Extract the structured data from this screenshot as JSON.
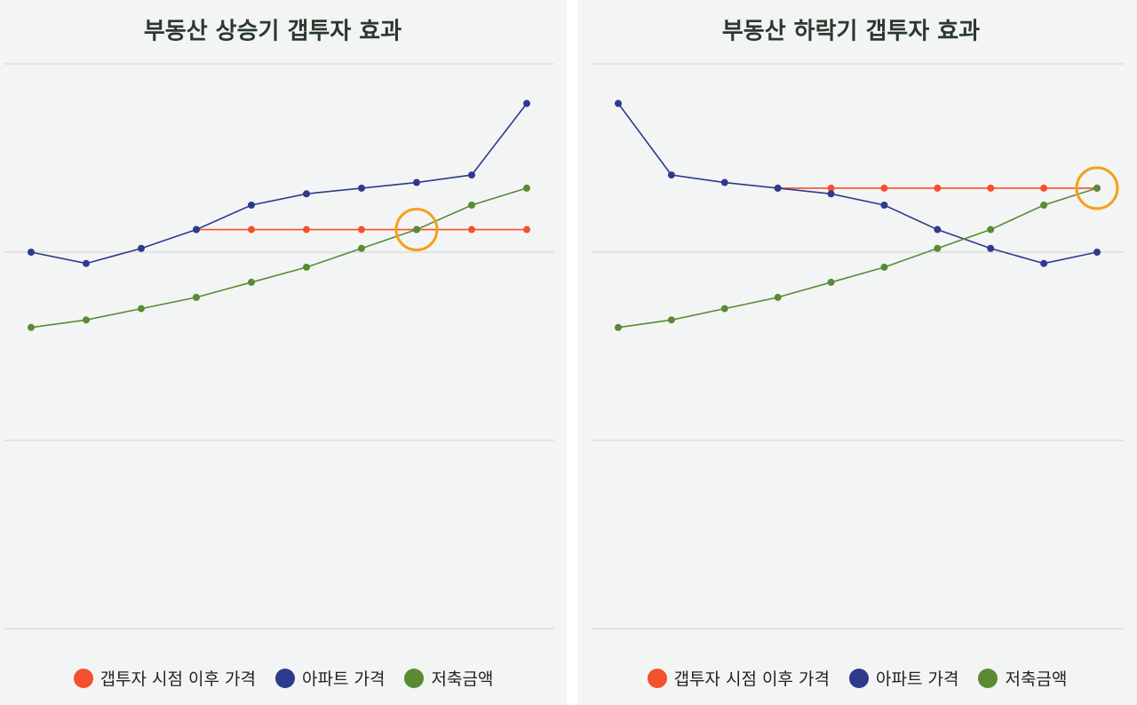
{
  "chart_data": [
    {
      "type": "line",
      "title": "부동산 상승기 갭투자 효과",
      "categories": [
        null,
        null,
        null,
        null,
        null,
        null,
        null,
        null,
        null,
        null
      ],
      "series": [
        {
          "name": "갭투자 시점 이후 가격",
          "color": "#f4502e",
          "values": [
            null,
            null,
            null,
            2.12,
            2.12,
            2.12,
            2.12,
            2.12,
            2.12,
            2.12
          ]
        },
        {
          "name": "아파트 가격",
          "color": "#2e3a8c",
          "values": [
            2.0,
            1.94,
            2.02,
            2.12,
            2.25,
            2.31,
            2.34,
            2.37,
            2.41,
            2.79
          ]
        },
        {
          "name": "저축금액",
          "color": "#5a8a32",
          "values": [
            1.6,
            1.64,
            1.7,
            1.76,
            1.84,
            1.92,
            2.02,
            2.12,
            2.25,
            2.34
          ]
        }
      ],
      "ylim": [
        0,
        3
      ],
      "yticks": [
        0,
        1,
        2,
        3
      ],
      "grid": true,
      "legend": "bottom",
      "highlight_index": 7,
      "highlight_color": "#f5a01a"
    },
    {
      "type": "line",
      "title": "부동산 하락기 갭투자 효과",
      "categories": [
        null,
        null,
        null,
        null,
        null,
        null,
        null,
        null,
        null,
        null
      ],
      "series": [
        {
          "name": "갭투자 시점 이후 가격",
          "color": "#f4502e",
          "values": [
            null,
            null,
            null,
            2.34,
            2.34,
            2.34,
            2.34,
            2.34,
            2.34,
            2.34
          ]
        },
        {
          "name": "아파트 가격",
          "color": "#2e3a8c",
          "values": [
            2.79,
            2.41,
            2.37,
            2.34,
            2.31,
            2.25,
            2.12,
            2.02,
            1.94,
            2.0
          ]
        },
        {
          "name": "저축금액",
          "color": "#5a8a32",
          "values": [
            1.6,
            1.64,
            1.7,
            1.76,
            1.84,
            1.92,
            2.02,
            2.12,
            2.25,
            2.34
          ]
        }
      ],
      "ylim": [
        0,
        3
      ],
      "yticks": [
        0,
        1,
        2,
        3
      ],
      "grid": true,
      "legend": "bottom",
      "highlight_index": 9,
      "highlight_color": "#f5a01a"
    }
  ]
}
